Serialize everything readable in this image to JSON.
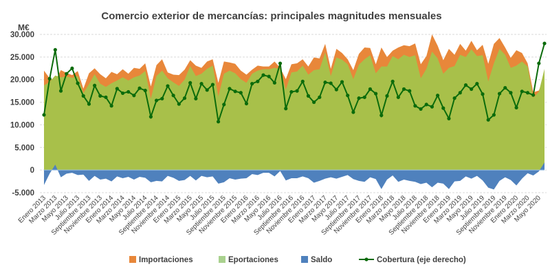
{
  "chart_data": {
    "type": "area",
    "title": "Comercio exterior de mercancías: principales magnitudes mensuales",
    "unit_label": "M€",
    "ylim": [
      -5000,
      30000
    ],
    "yticks": [
      30000,
      25000,
      20000,
      15000,
      10000,
      5000,
      0,
      -5000
    ],
    "ytick_labels": [
      "30.000",
      "25.000",
      "20.000",
      "15.000",
      "10.000",
      "5.000",
      "0",
      "-5.000"
    ],
    "grid": "horizontal dashed",
    "legend_position": "bottom",
    "x_tick_labels": [
      "Enero 2013",
      "Marzo 2013",
      "Mayo 2013",
      "Julio 2013",
      "Septiembre 2013",
      "Noviembre 2013",
      "Enero 2014",
      "Marzo 2014",
      "Mayo 2014",
      "Julio 2014",
      "Septiembre 2014",
      "Noviembre 2014",
      "Enero 2015",
      "Marzo 2015",
      "Mayo 2015",
      "Julio 2015",
      "Septiembre 2015",
      "Noviembre 2015",
      "Enero 2016",
      "Marzo 2016",
      "Mayo 2016",
      "Julio 2016",
      "Septiembre 2016",
      "Noviembre 2016",
      "Enero 2017",
      "Marzo 2017",
      "Mayo 2017",
      "Julio 2017",
      "Septiembre 2017",
      "Noviembre 2017",
      "Enero 2018",
      "Marzo 2018",
      "Mayo 2018",
      "Julio 2018",
      "Septiembre 2018",
      "Noviembre 2018",
      "Enero 2019",
      "Marzo 2019",
      "Mayo 2019",
      "Julio 2019",
      "Septiembre 2019",
      "Noviembre 2019",
      "Enero 2020",
      "Marzo 2020",
      "Mayo 2020"
    ],
    "x_period": "monthly, Enero 2013 – Junio 2020",
    "series": [
      {
        "name": "Importaciones",
        "kind": "area",
        "color": "#E8873A",
        "values": [
          22000,
          20300,
          19700,
          22100,
          21500,
          21000,
          21900,
          18000,
          21400,
          22500,
          21200,
          20300,
          21700,
          21200,
          22300,
          21300,
          22600,
          22400,
          23600,
          18500,
          23200,
          24500,
          21600,
          21100,
          21000,
          22200,
          24300,
          23100,
          22600,
          24000,
          24500,
          19300,
          24000,
          23800,
          23500,
          22000,
          21100,
          22200,
          23100,
          22900,
          22900,
          24000,
          22600,
          20100,
          23400,
          23600,
          24500,
          22900,
          24900,
          24700,
          27900,
          22400,
          26800,
          25900,
          24500,
          22100,
          25700,
          27100,
          27000,
          23400,
          27100,
          25000,
          26400,
          27100,
          27600,
          27400,
          28000,
          23400,
          25200,
          30000,
          27500,
          24300,
          26800,
          25500,
          27900,
          26400,
          28600,
          26500,
          27700,
          23500,
          27900,
          29200,
          27100,
          24800,
          26500,
          25900,
          23600,
          17200,
          17600,
          20700
        ]
      },
      {
        "name": "Eportaciones",
        "kind": "area",
        "color": "#A8C04A",
        "legend_color": "#A9D18E",
        "values": [
          18700,
          19500,
          20900,
          20500,
          20700,
          20400,
          20800,
          17000,
          19000,
          21200,
          19100,
          18400,
          19200,
          19800,
          20500,
          19800,
          20500,
          20900,
          21900,
          15800,
          20800,
          22000,
          20300,
          19400,
          18600,
          20000,
          23000,
          20800,
          21300,
          22400,
          23100,
          16300,
          21300,
          22000,
          21400,
          20100,
          19300,
          21300,
          22000,
          22300,
          22300,
          22600,
          22400,
          17800,
          21600,
          21800,
          23100,
          21100,
          22100,
          22300,
          26000,
          20800,
          24900,
          24400,
          23400,
          20100,
          23300,
          24500,
          25400,
          21400,
          22900,
          22900,
          25200,
          24500,
          25500,
          25000,
          25400,
          20300,
          22400,
          26200,
          24700,
          21300,
          22600,
          23000,
          25500,
          25000,
          26700,
          25200,
          25400,
          19600,
          23600,
          26800,
          25500,
          22600,
          23100,
          24000,
          22900,
          16000,
          17300,
          22400
        ]
      },
      {
        "name": "Saldo",
        "kind": "area",
        "color": "#4F81BD",
        "values": [
          -3300,
          -800,
          1200,
          -1600,
          -800,
          -600,
          -1100,
          -1000,
          -2400,
          -1300,
          -2100,
          -1900,
          -2500,
          -1400,
          -1800,
          -1500,
          -2100,
          -1500,
          -1700,
          -2700,
          -2400,
          -2500,
          -1300,
          -1700,
          -2400,
          -2200,
          -1300,
          -2300,
          -1300,
          -1600,
          -1400,
          -3000,
          -2700,
          -1800,
          -2100,
          -1900,
          -1800,
          -900,
          -1100,
          -600,
          -600,
          -1400,
          -200,
          -2300,
          -1800,
          -1800,
          -1400,
          -1800,
          -2800,
          -2400,
          -1900,
          -1600,
          -1900,
          -1500,
          -1100,
          -2000,
          -2400,
          -2600,
          -1600,
          -2000,
          -4200,
          -2100,
          -1200,
          -2600,
          -2100,
          -2400,
          -2600,
          -3100,
          -2800,
          -3800,
          -2800,
          -3000,
          -4200,
          -2500,
          -2400,
          -1400,
          -1900,
          -1300,
          -2300,
          -3900,
          -4300,
          -2400,
          -1600,
          -2200,
          -3400,
          -1900,
          -700,
          -1200,
          -300,
          1700
        ]
      },
      {
        "name": "Cobertura (eje derecho)",
        "kind": "line",
        "color": "#0B6B0B",
        "values": [
          12200,
          20200,
          26600,
          17500,
          21300,
          22500,
          19200,
          16400,
          14600,
          18700,
          16400,
          16100,
          14200,
          18000,
          17000,
          17300,
          16500,
          18100,
          17600,
          11800,
          15400,
          15800,
          18600,
          16500,
          14600,
          15900,
          19300,
          15800,
          19100,
          17700,
          18900,
          10700,
          14500,
          18000,
          17400,
          17100,
          14700,
          19100,
          19600,
          21000,
          20700,
          19300,
          23600,
          13600,
          17300,
          17500,
          19600,
          16400,
          15000,
          16100,
          19400,
          19200,
          17800,
          19500,
          16500,
          12800,
          15900,
          16100,
          17900,
          16900,
          12100,
          16400,
          19600,
          16100,
          17900,
          17500,
          14200,
          13500,
          14500,
          14000,
          16500,
          13700,
          11400,
          15900,
          17100,
          18800,
          17900,
          19100,
          16800,
          11100,
          12200,
          16900,
          18200,
          17100,
          13800,
          17400,
          17100,
          16600,
          23600,
          28000
        ]
      }
    ]
  }
}
